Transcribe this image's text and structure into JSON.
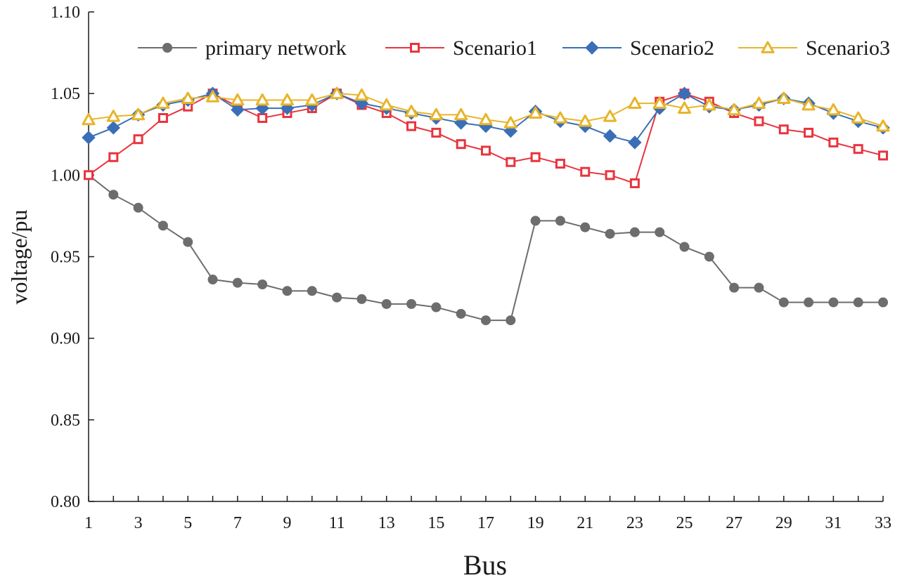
{
  "chart_data": {
    "type": "line",
    "title": "",
    "xlabel": "Bus",
    "ylabel": "voltage/pu",
    "xlim": [
      1,
      33
    ],
    "ylim": [
      0.8,
      1.1
    ],
    "x_ticks": [
      1,
      3,
      5,
      7,
      9,
      11,
      13,
      15,
      17,
      19,
      21,
      23,
      25,
      27,
      29,
      31,
      33
    ],
    "y_ticks": [
      "0.80",
      "0.85",
      "0.90",
      "0.95",
      "1.00",
      "1.05",
      "1.10"
    ],
    "legend_position": "top",
    "x": [
      1,
      2,
      3,
      4,
      5,
      6,
      7,
      8,
      9,
      10,
      11,
      12,
      13,
      14,
      15,
      16,
      17,
      18,
      19,
      20,
      21,
      22,
      23,
      24,
      25,
      26,
      27,
      28,
      29,
      30,
      31,
      32,
      33
    ],
    "series": [
      {
        "name": "primary network",
        "color": "#6d6d6d",
        "marker": "circle",
        "values": [
          1.0,
          0.988,
          0.98,
          0.969,
          0.959,
          0.936,
          0.934,
          0.933,
          0.929,
          0.929,
          0.925,
          0.924,
          0.921,
          0.921,
          0.919,
          0.915,
          0.911,
          0.911,
          0.972,
          0.972,
          0.968,
          0.964,
          0.965,
          0.965,
          0.956,
          0.95,
          0.931,
          0.931,
          0.922,
          0.922,
          0.922,
          0.922,
          0.922
        ]
      },
      {
        "name": "Scenario1",
        "color": "#e8343e",
        "marker": "square",
        "values": [
          1.0,
          1.011,
          1.022,
          1.035,
          1.042,
          1.05,
          1.042,
          1.035,
          1.038,
          1.041,
          1.05,
          1.043,
          1.038,
          1.03,
          1.026,
          1.019,
          1.015,
          1.008,
          1.011,
          1.007,
          1.002,
          1.0,
          0.995,
          1.045,
          1.05,
          1.045,
          1.038,
          1.033,
          1.028,
          1.026,
          1.02,
          1.016,
          1.012
        ]
      },
      {
        "name": "Scenario2",
        "color": "#3a6fb7",
        "marker": "diamond",
        "values": [
          1.023,
          1.029,
          1.037,
          1.043,
          1.046,
          1.05,
          1.04,
          1.041,
          1.041,
          1.043,
          1.05,
          1.044,
          1.041,
          1.038,
          1.035,
          1.032,
          1.03,
          1.027,
          1.039,
          1.033,
          1.03,
          1.024,
          1.02,
          1.041,
          1.05,
          1.042,
          1.04,
          1.043,
          1.047,
          1.044,
          1.038,
          1.033,
          1.029
        ]
      },
      {
        "name": "Scenario3",
        "color": "#e8b428",
        "marker": "triangle",
        "values": [
          1.034,
          1.036,
          1.037,
          1.044,
          1.047,
          1.048,
          1.046,
          1.046,
          1.046,
          1.046,
          1.05,
          1.049,
          1.043,
          1.039,
          1.037,
          1.037,
          1.034,
          1.032,
          1.038,
          1.035,
          1.033,
          1.036,
          1.044,
          1.044,
          1.041,
          1.043,
          1.04,
          1.044,
          1.047,
          1.043,
          1.04,
          1.035,
          1.03
        ]
      }
    ]
  }
}
